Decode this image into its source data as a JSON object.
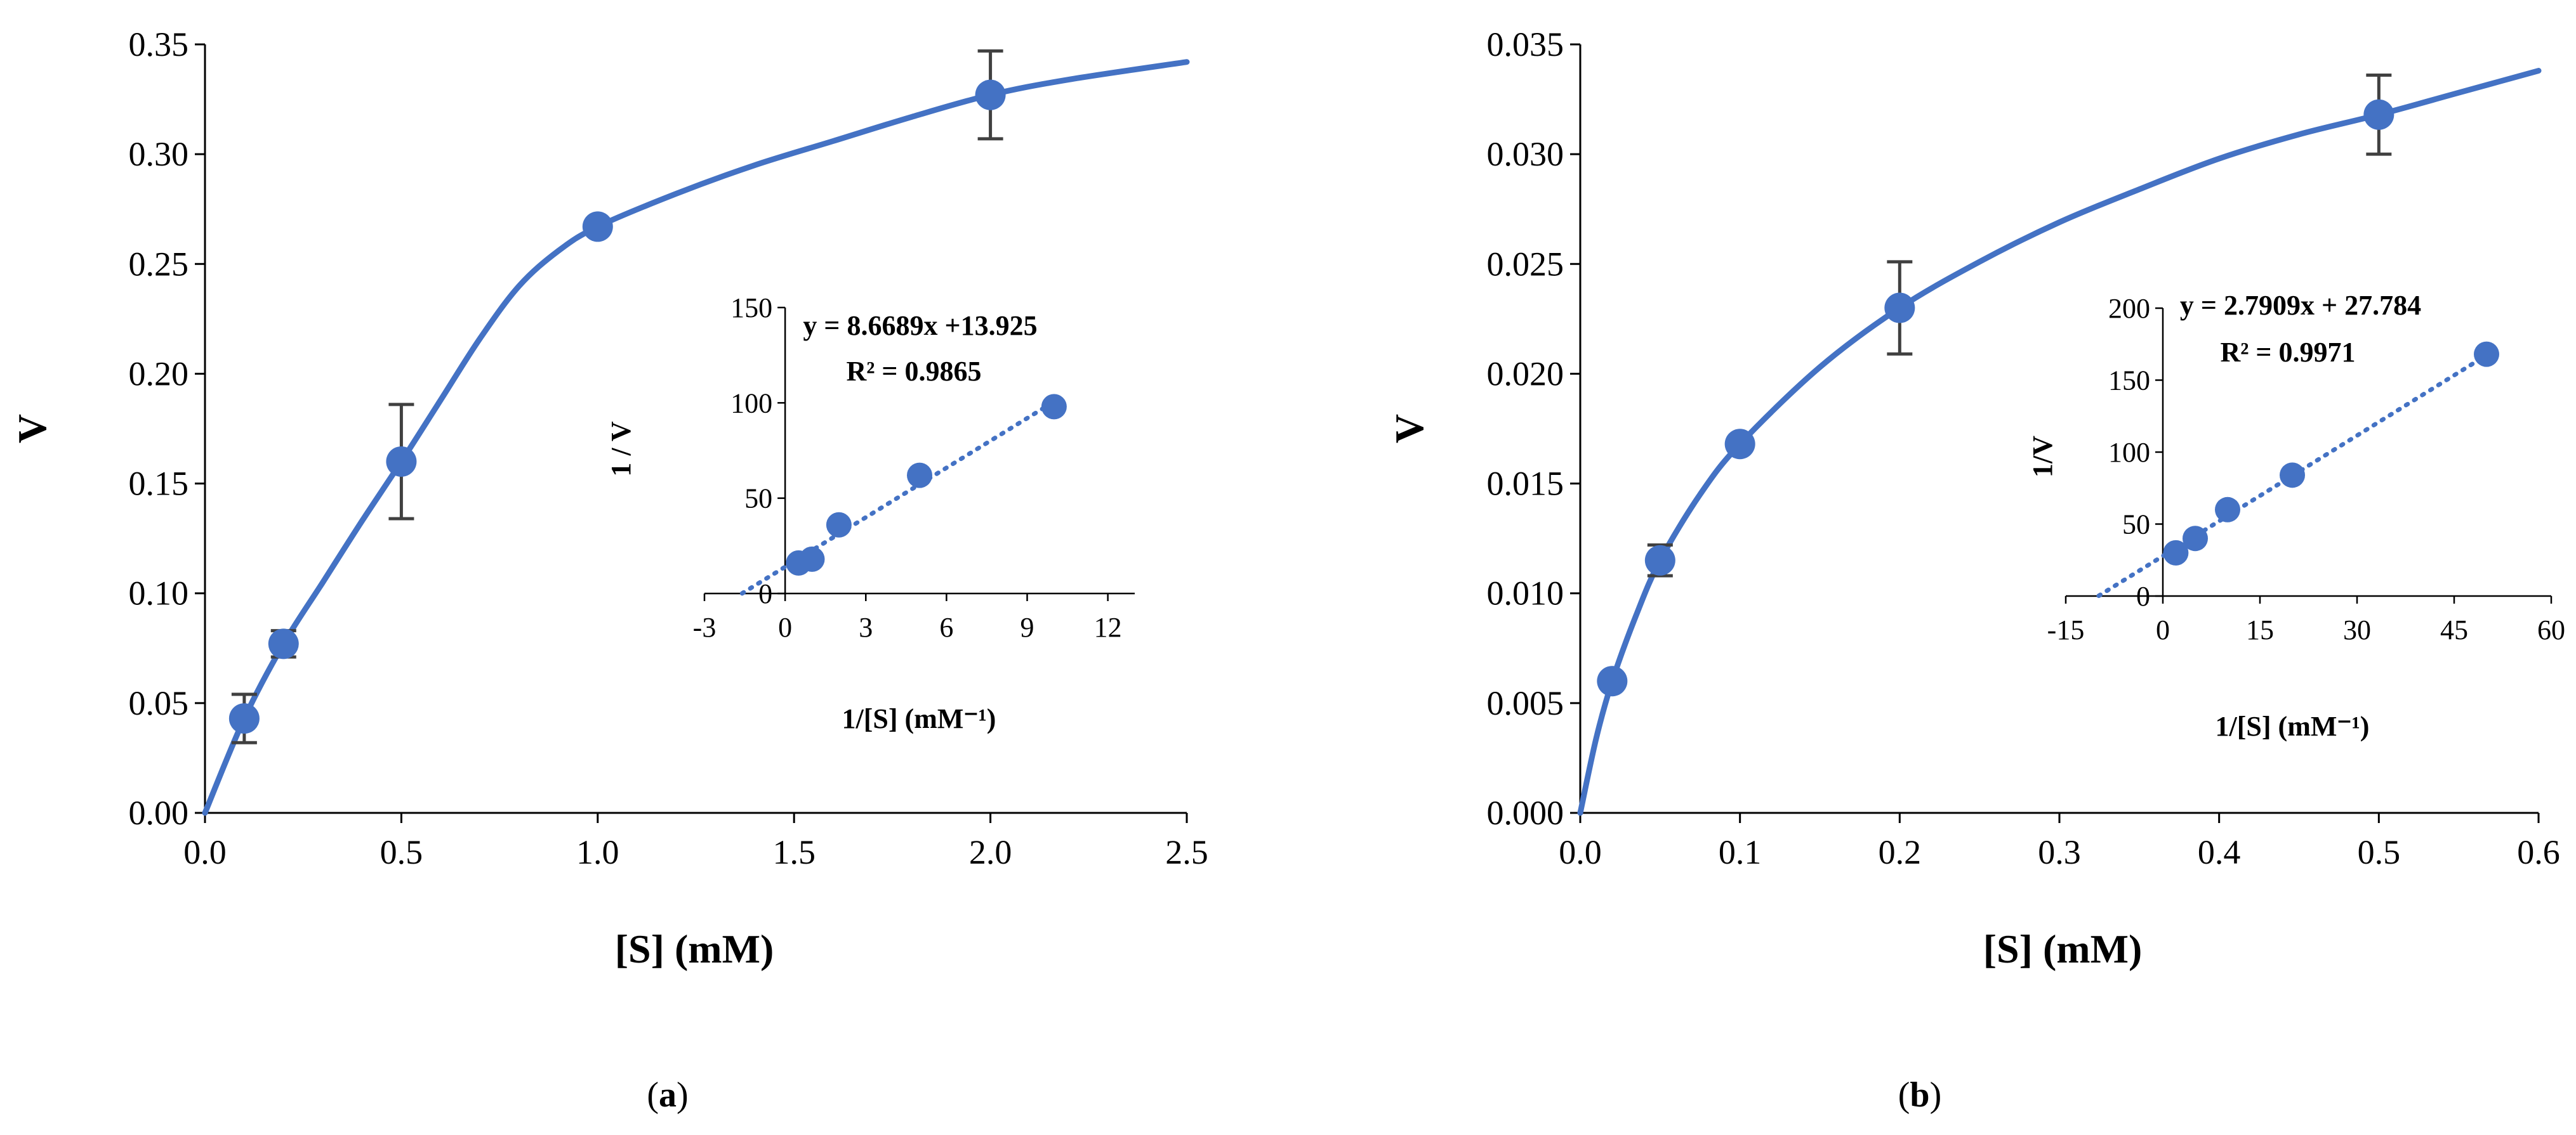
{
  "chart_data": [
    {
      "panel": "a",
      "panel_label": {
        "open": "(",
        "letter": "a",
        "close": ")"
      },
      "type": "scatter",
      "xlabel": "[S] (mM)",
      "ylabel": "V",
      "xlim": [
        0,
        2.5
      ],
      "ylim": [
        0,
        0.35
      ],
      "xticks": [
        0,
        0.5,
        1.0,
        1.5,
        2.0,
        2.5
      ],
      "yticks": [
        0,
        0.05,
        0.1,
        0.15,
        0.2,
        0.25,
        0.3,
        0.35
      ],
      "xtick_labels": [
        "0.0",
        "0.5",
        "1.0",
        "1.5",
        "2.0",
        "2.5"
      ],
      "ytick_labels": [
        "0.00",
        "0.05",
        "0.10",
        "0.15",
        "0.20",
        "0.25",
        "0.30",
        "0.35"
      ],
      "points": [
        {
          "x": 0.1,
          "y": 0.043,
          "err": 0.011
        },
        {
          "x": 0.2,
          "y": 0.077,
          "err": 0.006
        },
        {
          "x": 0.5,
          "y": 0.16,
          "err": 0.026
        },
        {
          "x": 1.0,
          "y": 0.267,
          "err": 0.0
        },
        {
          "x": 2.0,
          "y": 0.327,
          "err": 0.02
        }
      ],
      "curve": [
        [
          0,
          0
        ],
        [
          0.1,
          0.043
        ],
        [
          0.2,
          0.077
        ],
        [
          0.3,
          0.105
        ],
        [
          0.4,
          0.133
        ],
        [
          0.5,
          0.16
        ],
        [
          0.6,
          0.188
        ],
        [
          0.7,
          0.216
        ],
        [
          0.8,
          0.24
        ],
        [
          0.9,
          0.256
        ],
        [
          1.0,
          0.267
        ],
        [
          1.2,
          0.282
        ],
        [
          1.4,
          0.295
        ],
        [
          1.6,
          0.306
        ],
        [
          1.8,
          0.317
        ],
        [
          2.0,
          0.327
        ],
        [
          2.2,
          0.334
        ],
        [
          2.5,
          0.342
        ]
      ],
      "color": "#4472C4",
      "inset": {
        "type": "scatter",
        "xlabel": "1/[S] (mM⁻¹)",
        "ylabel": "1 / V",
        "xlim": [
          -3,
          13
        ],
        "ylim": [
          0,
          150
        ],
        "xticks": [
          -3,
          0,
          3,
          6,
          9,
          12
        ],
        "yticks": [
          0,
          50,
          100,
          150
        ],
        "xtick_labels": [
          "-3",
          "0",
          "3",
          "6",
          "9",
          "12"
        ],
        "ytick_labels": [
          "0",
          "50",
          "100",
          "150"
        ],
        "points": [
          {
            "x": 0.5,
            "y": 16
          },
          {
            "x": 1,
            "y": 18
          },
          {
            "x": 2,
            "y": 36
          },
          {
            "x": 5,
            "y": 62
          },
          {
            "x": 10,
            "y": 98
          }
        ],
        "trendline": {
          "slope": 8.6689,
          "intercept": 13.925,
          "x_from": -1.6,
          "x_to": 10
        },
        "equation": "y = 8.6689x +13.925",
        "r2": "R² = 0.9865"
      }
    },
    {
      "panel": "b",
      "panel_label": {
        "open": "(",
        "letter": "b",
        "close": ")"
      },
      "type": "scatter",
      "xlabel": "[S] (mM)",
      "ylabel": "V",
      "xlim": [
        0,
        0.6
      ],
      "ylim": [
        0,
        0.035
      ],
      "xticks": [
        0,
        0.1,
        0.2,
        0.3,
        0.4,
        0.5,
        0.6
      ],
      "yticks": [
        0,
        0.005,
        0.01,
        0.015,
        0.02,
        0.025,
        0.03,
        0.035
      ],
      "xtick_labels": [
        "0.0",
        "0.1",
        "0.2",
        "0.3",
        "0.4",
        "0.5",
        "0.6"
      ],
      "ytick_labels": [
        "0.000",
        "0.005",
        "0.010",
        "0.015",
        "0.020",
        "0.025",
        "0.030",
        "0.035"
      ],
      "points": [
        {
          "x": 0.02,
          "y": 0.006,
          "err": 0.0
        },
        {
          "x": 0.05,
          "y": 0.0115,
          "err": 0.0007
        },
        {
          "x": 0.1,
          "y": 0.0168,
          "err": 0.0
        },
        {
          "x": 0.2,
          "y": 0.023,
          "err": 0.0021
        },
        {
          "x": 0.5,
          "y": 0.0318,
          "err": 0.0018
        }
      ],
      "curve": [
        [
          0,
          0
        ],
        [
          0.01,
          0.0034
        ],
        [
          0.02,
          0.006
        ],
        [
          0.035,
          0.009
        ],
        [
          0.05,
          0.0115
        ],
        [
          0.075,
          0.0145
        ],
        [
          0.1,
          0.0168
        ],
        [
          0.15,
          0.0203
        ],
        [
          0.2,
          0.023
        ],
        [
          0.25,
          0.0251
        ],
        [
          0.3,
          0.0269
        ],
        [
          0.35,
          0.0284
        ],
        [
          0.4,
          0.0298
        ],
        [
          0.45,
          0.0309
        ],
        [
          0.5,
          0.0318
        ],
        [
          0.55,
          0.0328
        ],
        [
          0.6,
          0.0338
        ]
      ],
      "color": "#4472C4",
      "inset": {
        "type": "scatter",
        "xlabel": "1/[S] (mM⁻¹)",
        "ylabel": "1/V",
        "xlim": [
          -15,
          60
        ],
        "ylim": [
          0,
          200
        ],
        "xticks": [
          -15,
          0,
          15,
          30,
          45,
          60
        ],
        "yticks": [
          0,
          50,
          100,
          150,
          200
        ],
        "xtick_labels": [
          "-15",
          "0",
          "15",
          "30",
          "45",
          "60"
        ],
        "ytick_labels": [
          "0",
          "50",
          "100",
          "150",
          "200"
        ],
        "points": [
          {
            "x": 2,
            "y": 30
          },
          {
            "x": 5,
            "y": 40
          },
          {
            "x": 10,
            "y": 60
          },
          {
            "x": 20,
            "y": 84
          },
          {
            "x": 50,
            "y": 168
          }
        ],
        "trendline": {
          "slope": 2.7909,
          "intercept": 27.784,
          "x_from": -9.9,
          "x_to": 50
        },
        "equation": "y = 2.7909x + 27.784",
        "r2": "R² = 0.9971"
      }
    }
  ]
}
